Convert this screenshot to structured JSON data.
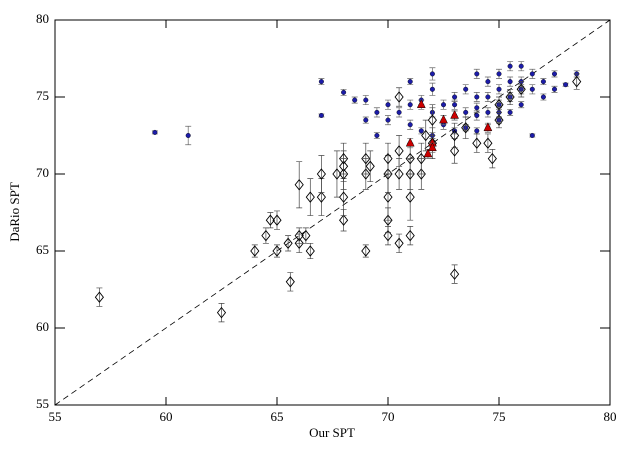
{
  "chart_data": {
    "type": "scatter",
    "xlabel": "Our SPT",
    "ylabel": "DaRio SPT",
    "xlim": [
      55,
      80
    ],
    "ylim": [
      55,
      80
    ],
    "xticks": [
      55,
      60,
      65,
      70,
      75,
      80
    ],
    "yticks": [
      55,
      60,
      65,
      70,
      75,
      80
    ],
    "series": [
      {
        "color": "#1c1ca8",
        "marker": "dot",
        "x": [
          59.5,
          61,
          67,
          67,
          68,
          68.5,
          69,
          69,
          69.5,
          69.5,
          70,
          70.5,
          71,
          71,
          71.5,
          71.5,
          72,
          72,
          72,
          72.5,
          72.5,
          73,
          73,
          73,
          73.5,
          73.5,
          73.5,
          74,
          74,
          74,
          74,
          74.5,
          74.5,
          74.5,
          74.5,
          75,
          75,
          75,
          75,
          75.5,
          75.5,
          75.5,
          75.5,
          76,
          76,
          76,
          76,
          76.5,
          76.5,
          76.5,
          77,
          77,
          77.5,
          77.5,
          78,
          78.5,
          72,
          73,
          74,
          75,
          71,
          70
        ],
        "y": [
          72.7,
          72.5,
          76,
          73.8,
          75.3,
          74.8,
          74.8,
          73.5,
          74,
          72.5,
          74.5,
          74,
          76,
          73.2,
          74.8,
          72.8,
          75.5,
          76.5,
          72.5,
          74.5,
          73.2,
          75,
          73.8,
          72.8,
          75.5,
          74,
          73,
          76.5,
          75,
          73.8,
          72.8,
          76,
          75,
          74,
          73,
          76.5,
          75.5,
          74.5,
          73.5,
          77,
          76,
          75,
          74,
          77,
          76,
          75.5,
          74.5,
          76.5,
          75.5,
          72.5,
          76,
          75,
          76.5,
          75.5,
          75.8,
          76.5,
          74,
          74.5,
          74.3,
          74,
          74.5,
          73.5
        ],
        "yerr": [
          0.1,
          0.6,
          0.2,
          0.1,
          0.2,
          0.2,
          0.3,
          0.2,
          0.3,
          0.2,
          0.3,
          0.3,
          0.2,
          0.3,
          0.3,
          0.2,
          0.4,
          0.4,
          0.2,
          0.3,
          0.3,
          0.3,
          0.3,
          0.2,
          0.3,
          0.3,
          0.2,
          0.3,
          0.3,
          0.3,
          0.2,
          0.3,
          0.3,
          0.3,
          0.2,
          0.3,
          0.3,
          0.3,
          0.2,
          0.3,
          0.3,
          0.3,
          0.2,
          0.3,
          0.3,
          0.3,
          0.2,
          0.3,
          0.3,
          0.1,
          0.2,
          0.2,
          0.2,
          0.2,
          0.1,
          0.2,
          0.3,
          0.3,
          0.3,
          0.3,
          0.3,
          0.3
        ]
      },
      {
        "color": "#000000",
        "marker": "diamond",
        "x": [
          57,
          62.5,
          64,
          64.5,
          64.7,
          65,
          65,
          65.5,
          65.6,
          66,
          66,
          66,
          66.3,
          66.5,
          66.5,
          67,
          67,
          67.7,
          68,
          68,
          68,
          68,
          68,
          69,
          69,
          69,
          69.2,
          70,
          70,
          70,
          70,
          70,
          70.5,
          70.5,
          70.5,
          70.5,
          71,
          71,
          71,
          71,
          71.5,
          71.5,
          71.7,
          72,
          72,
          73,
          73,
          73,
          73.5,
          74,
          74.5,
          74.7,
          75,
          75,
          75.5,
          76,
          78.5
        ],
        "y": [
          62,
          61,
          65,
          66,
          67,
          65,
          67,
          65.5,
          63,
          65.5,
          66,
          69.3,
          66,
          65,
          68.5,
          68.5,
          70,
          70,
          67,
          68.5,
          70,
          70.5,
          71,
          65,
          70,
          71,
          70.5,
          66,
          67,
          68.5,
          70,
          71,
          65.5,
          70,
          71.5,
          75,
          66,
          68.5,
          70,
          71,
          70,
          71,
          72.5,
          72,
          73.5,
          63.5,
          71.5,
          72.5,
          73,
          72,
          72,
          71,
          73.5,
          74.5,
          75,
          75.5,
          76
        ],
        "yerr": [
          0.6,
          0.6,
          0.4,
          0.5,
          0.5,
          0.4,
          0.6,
          0.5,
          0.6,
          0.6,
          0.5,
          1.5,
          0.5,
          0.5,
          1.2,
          1.2,
          1.2,
          1.5,
          0.7,
          1.2,
          1,
          1,
          1,
          0.4,
          1,
          1,
          1,
          0.6,
          0.8,
          1.5,
          1.2,
          1,
          0.6,
          1,
          1,
          0.6,
          0.6,
          1.5,
          1,
          1,
          1,
          1,
          1,
          1,
          1,
          0.6,
          0.8,
          0.8,
          0.7,
          0.6,
          0.6,
          0.6,
          0.5,
          0.5,
          0.5,
          0.5,
          0.5
        ]
      },
      {
        "color": "#cc0000",
        "marker": "triangle",
        "x": [
          71.5,
          71,
          72,
          71.8,
          72.5,
          73,
          74.5,
          72
        ],
        "y": [
          74.5,
          72,
          72,
          71.3,
          73.5,
          73.8,
          73,
          71.7
        ],
        "yerr": [
          0.3,
          0.3,
          0.3,
          0.3,
          0.3,
          0.3,
          0.3,
          0.3
        ]
      }
    ]
  }
}
